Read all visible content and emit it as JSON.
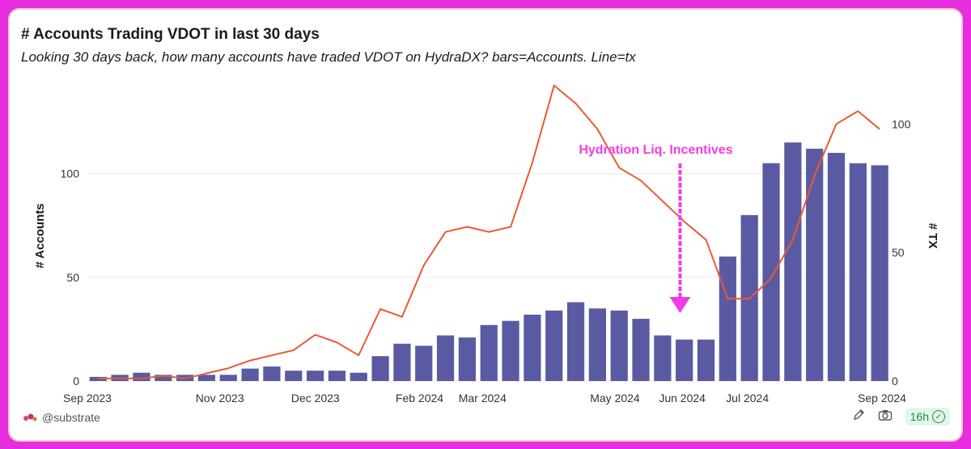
{
  "header": {
    "title": "# Accounts Trading VDOT in last 30 days",
    "subtitle": "Looking 30 days back, how many accounts have traded VDOT on HydraDX? bars=Accounts. Line=tx"
  },
  "footer": {
    "author": "@substrate",
    "refresh": "16h",
    "icons": [
      "edit-icon",
      "camera-icon",
      "verified-check-icon"
    ]
  },
  "colors": {
    "bars": "#5a5aa3",
    "line": "#e85a34",
    "annotation": "#f03ce8",
    "grid": "#ececec",
    "text": "#333333"
  },
  "chart_data": {
    "type": "bar",
    "title": "# Accounts Trading VDOT in last 30 days",
    "ylabel": "# Accounts",
    "y2label": "# TX",
    "ylim": [
      0,
      140
    ],
    "y2lim": [
      0,
      113
    ],
    "yticks": [
      0,
      50,
      100
    ],
    "y2ticks": [
      0,
      50,
      100
    ],
    "xlim": [
      "2023-09-01",
      "2024-09-01"
    ],
    "xtick_labels": [
      "Sep 2023",
      "Nov 2023",
      "Dec 2023",
      "Feb 2024",
      "Mar 2024",
      "May 2024",
      "Jun 2024",
      "Jul 2024",
      "Sep 2024"
    ],
    "xtick_dates": [
      "2023-09-01",
      "2023-11-01",
      "2023-12-15",
      "2024-02-01",
      "2024-03-01",
      "2024-05-01",
      "2024-06-01",
      "2024-07-01",
      "2024-09-01"
    ],
    "grid": true,
    "annotation": {
      "text": "Hydration Liq. Incentives",
      "date": "2024-05-31",
      "style": "arrow-down"
    },
    "series": [
      {
        "name": "Accounts",
        "kind": "bar",
        "axis": "left",
        "x": [
          "2023-09-01",
          "2023-09-11",
          "2023-09-21",
          "2023-10-01",
          "2023-10-11",
          "2023-10-21",
          "2023-10-31",
          "2023-11-10",
          "2023-11-20",
          "2023-11-30",
          "2023-12-10",
          "2023-12-20",
          "2023-12-30",
          "2024-01-09",
          "2024-01-19",
          "2024-01-29",
          "2024-02-08",
          "2024-02-18",
          "2024-02-28",
          "2024-03-09",
          "2024-03-19",
          "2024-03-29",
          "2024-04-08",
          "2024-04-18",
          "2024-04-28",
          "2024-05-08",
          "2024-05-18",
          "2024-05-28",
          "2024-06-07",
          "2024-06-17",
          "2024-06-27",
          "2024-07-07",
          "2024-07-17",
          "2024-07-27",
          "2024-08-06",
          "2024-08-16",
          "2024-08-26"
        ],
        "values": [
          2,
          3,
          4,
          3,
          3,
          3,
          3,
          6,
          7,
          5,
          5,
          5,
          4,
          12,
          18,
          17,
          22,
          21,
          27,
          29,
          32,
          34,
          38,
          35,
          34,
          30,
          22,
          20,
          20,
          60,
          80,
          105,
          115,
          112,
          110,
          105,
          104
        ]
      },
      {
        "name": "TX",
        "kind": "line",
        "axis": "right",
        "x": [
          "2023-09-01",
          "2023-09-11",
          "2023-09-21",
          "2023-10-01",
          "2023-10-11",
          "2023-10-21",
          "2023-10-31",
          "2023-11-10",
          "2023-11-20",
          "2023-11-30",
          "2023-12-10",
          "2023-12-20",
          "2023-12-30",
          "2024-01-09",
          "2024-01-19",
          "2024-01-29",
          "2024-02-08",
          "2024-02-18",
          "2024-02-28",
          "2024-03-09",
          "2024-03-19",
          "2024-03-29",
          "2024-04-08",
          "2024-04-18",
          "2024-04-28",
          "2024-05-08",
          "2024-05-18",
          "2024-05-28",
          "2024-06-07",
          "2024-06-17",
          "2024-06-27",
          "2024-07-07",
          "2024-07-17",
          "2024-07-27",
          "2024-08-06",
          "2024-08-16",
          "2024-08-26"
        ],
        "values": [
          1,
          1,
          1,
          2,
          1,
          3,
          5,
          8,
          10,
          12,
          18,
          15,
          10,
          28,
          25,
          45,
          58,
          60,
          58,
          60,
          85,
          115,
          108,
          98,
          83,
          78,
          70,
          62,
          55,
          32,
          32,
          40,
          55,
          80,
          100,
          105,
          98
        ]
      }
    ]
  }
}
